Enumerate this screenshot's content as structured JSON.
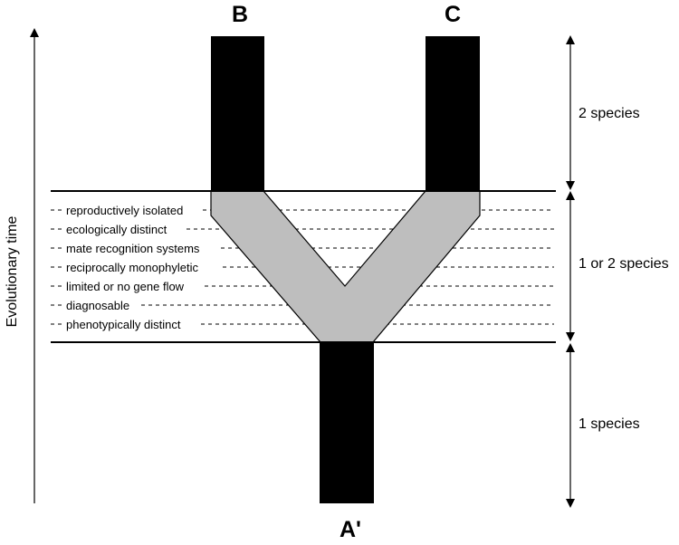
{
  "branch_labels": {
    "b": "B",
    "c": "C",
    "a": "A'"
  },
  "axis_label": "Evolutionary time",
  "zones": [
    {
      "label": "2 species"
    },
    {
      "label": "1 or 2 species"
    },
    {
      "label": "1 species"
    }
  ],
  "criteria": [
    "reproductively isolated",
    "ecologically distinct",
    "mate recognition systems",
    "reciprocally monophyletic",
    "limited or no gene flow",
    "diagnosable",
    "phenotypically distinct"
  ],
  "colors": {
    "lineage": "#000000",
    "transition": "#bebebe",
    "background": "#ffffff"
  }
}
